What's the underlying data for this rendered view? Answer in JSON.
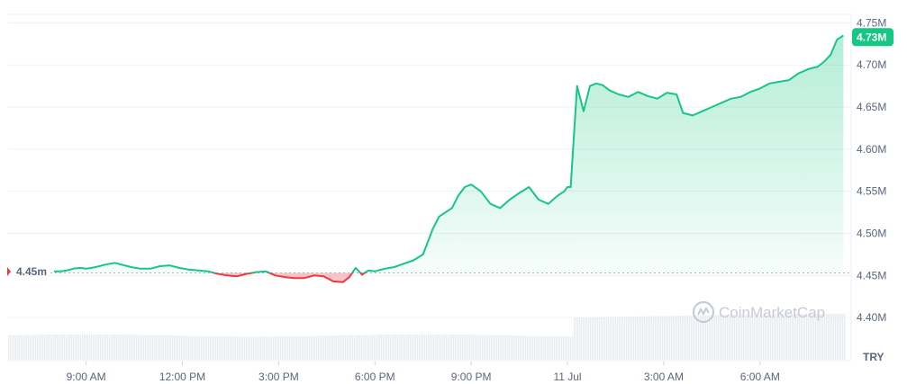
{
  "chart_data": {
    "type": "area",
    "y_ticks": [
      "4.40M",
      "4.45M",
      "4.50M",
      "4.55M",
      "4.60M",
      "4.65M",
      "4.70M",
      "4.75M"
    ],
    "y_tick_values": [
      4.4,
      4.45,
      4.5,
      4.55,
      4.6,
      4.65,
      4.7,
      4.75
    ],
    "x_ticks": [
      "9:00 AM",
      "12:00 PM",
      "3:00 PM",
      "6:00 PM",
      "9:00 PM",
      "11 Jul",
      "3:00 AM",
      "6:00 AM"
    ],
    "x_tick_hours": [
      9,
      12,
      15,
      18,
      21,
      24,
      27,
      30
    ],
    "ylim": [
      4.35,
      4.76
    ],
    "xlim": [
      8.0,
      32.7
    ],
    "reference_label": "4.45m",
    "reference_value": 4.453,
    "current_label": "4.73M",
    "current_value": 4.733,
    "currency": "TRY",
    "watermark": "CoinMarketCap",
    "colors": {
      "up": "#16c784",
      "down": "#ea3943",
      "grid": "#eff2f5",
      "text": "#58667e"
    },
    "series": [
      {
        "x": [
          8.0,
          8.2,
          8.4,
          8.6,
          8.8,
          9.0,
          9.3,
          9.6,
          9.9,
          10.1,
          10.4,
          10.7,
          11.0,
          11.3,
          11.6,
          11.9,
          12.2,
          12.5,
          12.8,
          13.1,
          13.4,
          13.7,
          14.0,
          14.3,
          14.6,
          14.9,
          15.2,
          15.5,
          15.8,
          16.1,
          16.4,
          16.7,
          17.0,
          17.2,
          17.4,
          17.6,
          17.8,
          18.0,
          18.3,
          18.6,
          18.9,
          19.2,
          19.5,
          19.8,
          20.0,
          20.2,
          20.4,
          20.6,
          20.8,
          21.0,
          21.3,
          21.6,
          21.9,
          22.2,
          22.5,
          22.8,
          23.1,
          23.4,
          23.7,
          23.9,
          24.0,
          24.1,
          24.3,
          24.5,
          24.7,
          24.9,
          25.1,
          25.3,
          25.6,
          25.9,
          26.2,
          26.5,
          26.8,
          27.1,
          27.4,
          27.6,
          27.9,
          28.2,
          28.5,
          28.8,
          29.1,
          29.4,
          29.7,
          30.0,
          30.3,
          30.6,
          30.9,
          31.2,
          31.5,
          31.8,
          32.0,
          32.2,
          32.4,
          32.6
        ],
        "y": [
          4.455,
          4.455,
          4.456,
          4.458,
          4.459,
          4.458,
          4.46,
          4.463,
          4.465,
          4.463,
          4.46,
          4.458,
          4.458,
          4.461,
          4.462,
          4.459,
          4.457,
          4.456,
          4.455,
          4.452,
          4.45,
          4.449,
          4.452,
          4.454,
          4.455,
          4.45,
          4.448,
          4.447,
          4.447,
          4.45,
          4.449,
          4.443,
          4.442,
          4.448,
          4.459,
          4.451,
          4.456,
          4.455,
          4.458,
          4.46,
          4.464,
          4.468,
          4.475,
          4.505,
          4.52,
          4.525,
          4.53,
          4.545,
          4.555,
          4.558,
          4.55,
          4.535,
          4.53,
          4.54,
          4.548,
          4.555,
          4.54,
          4.535,
          4.545,
          4.55,
          4.555,
          4.555,
          4.675,
          4.645,
          4.675,
          4.678,
          4.676,
          4.67,
          4.665,
          4.662,
          4.668,
          4.663,
          4.66,
          4.667,
          4.665,
          4.643,
          4.64,
          4.645,
          4.65,
          4.655,
          4.66,
          4.662,
          4.668,
          4.672,
          4.678,
          4.68,
          4.682,
          4.69,
          4.695,
          4.698,
          4.704,
          4.712,
          4.73,
          4.735
        ]
      }
    ]
  }
}
